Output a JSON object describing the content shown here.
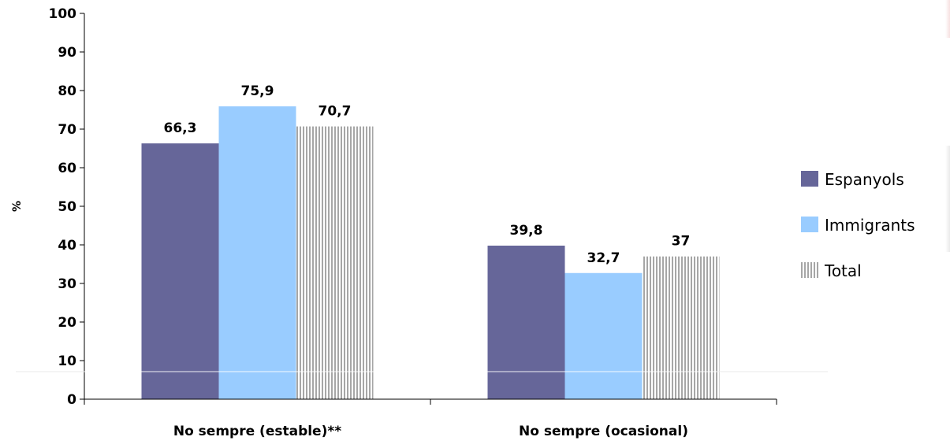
{
  "chart_data": {
    "type": "bar",
    "title": "",
    "xlabel": "",
    "ylabel": "%",
    "ylim": [
      0,
      100
    ],
    "yticks": [
      0,
      10,
      20,
      30,
      40,
      50,
      60,
      70,
      80,
      90,
      100
    ],
    "grid": false,
    "legend_position": "right",
    "categories": [
      "No sempre (estable)**",
      "No sempre (ocasional)"
    ],
    "series": [
      {
        "name": "Espanyols",
        "values": [
          66.3,
          39.8
        ],
        "labels": [
          "66,3",
          "39,8"
        ],
        "color": "#666699",
        "pattern": "solid"
      },
      {
        "name": "Immigrants",
        "values": [
          75.9,
          32.7
        ],
        "labels": [
          "75,9",
          "32,7"
        ],
        "color": "#99CCFF",
        "pattern": "solid"
      },
      {
        "name": "Total",
        "values": [
          70.7,
          37
        ],
        "labels": [
          "70,7",
          "37"
        ],
        "color": "#A6A6A6",
        "pattern": "vertical-stripes"
      }
    ]
  }
}
